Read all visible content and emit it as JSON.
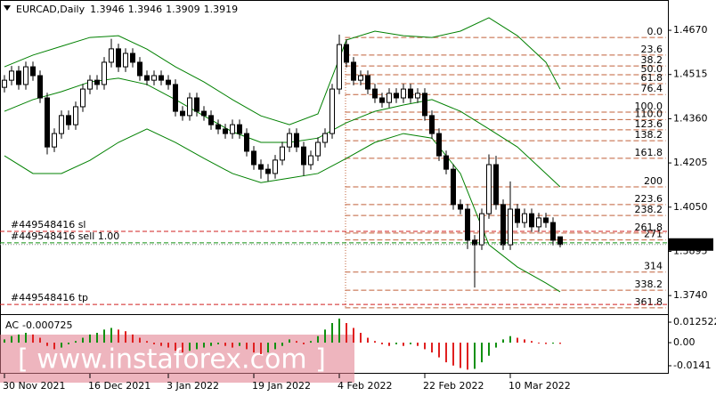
{
  "chart_data": {
    "type": "candlestick",
    "title": "EURCAD,Daily",
    "ylim": [
      1.3678,
      1.477
    ],
    "yticks": [
      {
        "value": 1.467,
        "label": "1.4670"
      },
      1.4515,
      {
        "value": 1.436,
        "label": "1.4360"
      },
      1.4205,
      {
        "value": 1.405,
        "label": "1.4050"
      },
      1.3895,
      {
        "value": 1.374,
        "label": "1.3740"
      }
    ],
    "xticks": [
      {
        "value": 0,
        "label": "30 Nov 2021"
      },
      {
        "value": 12,
        "label": "16 Dec 2021"
      },
      {
        "value": 23,
        "label": "3 Jan 2022"
      },
      {
        "value": 35,
        "label": "19 Jan 2022"
      },
      {
        "value": 47,
        "label": "4 Feb 2022"
      },
      {
        "value": 59,
        "label": "22 Feb 2022"
      },
      {
        "value": 71,
        "label": "10 Mar 2022"
      }
    ],
    "up_color": "#ffffff",
    "down_color": "#000000",
    "open": [
      1.447,
      1.4495,
      1.4527,
      1.448,
      1.4542,
      1.4511,
      1.4433,
      1.4261,
      1.4308,
      1.4371,
      1.4339,
      1.4402,
      1.4464,
      1.4495,
      1.448,
      1.4558,
      1.4605,
      1.4542,
      1.4589,
      1.4558,
      1.4511,
      1.4495,
      1.4511,
      1.4495,
      1.448,
      1.4386,
      1.4371,
      1.4433,
      1.4386,
      1.4371,
      1.4339,
      1.4324,
      1.4308,
      1.4339,
      1.4308,
      1.4246,
      1.4199,
      1.4183,
      1.4168,
      1.4215,
      1.4261,
      1.4308,
      1.4261,
      1.4199,
      1.423,
      1.4277,
      1.4308,
      1.4464,
      1.462,
      1.4558,
      1.4495,
      1.4511,
      1.4464,
      1.4433,
      1.4417,
      1.4449,
      1.4433,
      1.4464,
      1.4433,
      1.4449,
      1.4371,
      1.4308,
      1.423,
      1.4183,
      1.4059,
      1.4043,
      1.3934,
      1.3918,
      1.4027,
      1.4199,
      1.4059,
      1.3918,
      1.4043,
      1.3996,
      1.4027,
      1.3981,
      1.4012,
      1.3996,
      1.3946
    ],
    "high": [
      1.4513,
      1.4545,
      1.4545,
      1.456,
      1.456,
      1.4529,
      1.4451,
      1.4326,
      1.4389,
      1.4389,
      1.442,
      1.4482,
      1.4513,
      1.4513,
      1.4576,
      1.464,
      1.4623,
      1.4607,
      1.4607,
      1.4576,
      1.4529,
      1.4529,
      1.4529,
      1.4513,
      1.4498,
      1.4404,
      1.4451,
      1.4451,
      1.4404,
      1.4389,
      1.4357,
      1.4342,
      1.4357,
      1.4357,
      1.4326,
      1.4264,
      1.4217,
      1.4201,
      1.4233,
      1.4279,
      1.4326,
      1.4326,
      1.4279,
      1.4248,
      1.4295,
      1.4326,
      1.4482,
      1.4655,
      1.4638,
      1.4576,
      1.4529,
      1.4529,
      1.4482,
      1.4451,
      1.4467,
      1.4467,
      1.4482,
      1.4482,
      1.4467,
      1.4467,
      1.4389,
      1.4326,
      1.4248,
      1.4201,
      1.4077,
      1.4061,
      1.3952,
      1.4045,
      1.4235,
      1.423,
      1.4077,
      1.414,
      1.4061,
      1.4045,
      1.4045,
      1.403,
      1.403,
      1.4014,
      1.3946
    ],
    "low": [
      1.4452,
      1.4477,
      1.4462,
      1.4462,
      1.4493,
      1.4415,
      1.4235,
      1.4243,
      1.429,
      1.4321,
      1.4321,
      1.4384,
      1.4446,
      1.4462,
      1.4462,
      1.454,
      1.4524,
      1.4524,
      1.454,
      1.4493,
      1.4477,
      1.4477,
      1.4477,
      1.4462,
      1.4368,
      1.4353,
      1.4353,
      1.4368,
      1.4353,
      1.4321,
      1.4306,
      1.429,
      1.429,
      1.429,
      1.4228,
      1.4181,
      1.415,
      1.414,
      1.415,
      1.4197,
      1.4243,
      1.4243,
      1.416,
      1.4181,
      1.4212,
      1.4259,
      1.429,
      1.4446,
      1.454,
      1.4477,
      1.4477,
      1.4446,
      1.4415,
      1.4399,
      1.4399,
      1.4415,
      1.4415,
      1.4415,
      1.4415,
      1.4353,
      1.429,
      1.4212,
      1.4165,
      1.4041,
      1.4025,
      1.3903,
      1.3768,
      1.39,
      1.4009,
      1.4041,
      1.39,
      1.39,
      1.3978,
      1.3978,
      1.3963,
      1.3963,
      1.3978,
      1.3916,
      1.3909
    ],
    "close": [
      1.4495,
      1.4527,
      1.448,
      1.4542,
      1.4511,
      1.4433,
      1.4261,
      1.4308,
      1.4371,
      1.4339,
      1.4402,
      1.4464,
      1.4495,
      1.448,
      1.4558,
      1.4605,
      1.4542,
      1.4589,
      1.4558,
      1.4511,
      1.4495,
      1.4511,
      1.4495,
      1.448,
      1.4386,
      1.4371,
      1.4433,
      1.4386,
      1.4371,
      1.4339,
      1.4324,
      1.4308,
      1.4339,
      1.4308,
      1.4246,
      1.4199,
      1.4183,
      1.4168,
      1.4215,
      1.4261,
      1.4308,
      1.4261,
      1.4199,
      1.423,
      1.4277,
      1.4308,
      1.4464,
      1.462,
      1.4558,
      1.4495,
      1.4511,
      1.4464,
      1.4433,
      1.4417,
      1.4449,
      1.4433,
      1.4464,
      1.4433,
      1.4449,
      1.4371,
      1.4308,
      1.423,
      1.4183,
      1.4059,
      1.4043,
      1.3934,
      1.3918,
      1.4027,
      1.4199,
      1.4059,
      1.3918,
      1.4043,
      1.3996,
      1.4027,
      1.3981,
      1.4012,
      1.3996,
      1.3934,
      1.3919
    ],
    "bands": [
      {
        "color": "#008000",
        "x": [
          0,
          4,
          8,
          12,
          16,
          20,
          24,
          28,
          32,
          36,
          40,
          44,
          48,
          52,
          56,
          60,
          64,
          68,
          72,
          76,
          78
        ],
        "values": [
          1.4542,
          1.4583,
          1.4614,
          1.4645,
          1.4651,
          1.4604,
          1.4542,
          1.4489,
          1.4427,
          1.437,
          1.4339,
          1.4377,
          1.4636,
          1.4667,
          1.4651,
          1.4645,
          1.4667,
          1.4714,
          1.4651,
          1.4558,
          1.4464
        ]
      },
      {
        "color": "#008000",
        "x": [
          0,
          4,
          8,
          12,
          16,
          20,
          24,
          28,
          32,
          36,
          40,
          44,
          48,
          52,
          56,
          60,
          64,
          68,
          72,
          76,
          78
        ],
        "values": [
          1.4386,
          1.4427,
          1.4455,
          1.4489,
          1.4502,
          1.448,
          1.4427,
          1.437,
          1.4314,
          1.4277,
          1.4277,
          1.4292,
          1.4346,
          1.4386,
          1.4408,
          1.4427,
          1.4386,
          1.4324,
          1.4261,
          1.4168,
          1.4121
        ]
      },
      {
        "color": "#008000",
        "x": [
          0,
          4,
          8,
          12,
          16,
          20,
          24,
          28,
          32,
          36,
          40,
          44,
          48,
          52,
          56,
          60,
          64,
          68,
          72,
          76,
          78
        ],
        "values": [
          1.423,
          1.4168,
          1.4168,
          1.4214,
          1.4277,
          1.4324,
          1.4277,
          1.4221,
          1.4168,
          1.4136,
          1.4152,
          1.4168,
          1.4221,
          1.4277,
          1.4308,
          1.4292,
          1.4168,
          1.3918,
          1.384,
          1.3784,
          1.3753
        ]
      }
    ],
    "fib": {
      "color": "#c0603a",
      "start": 47.8,
      "level_0": 1.4645,
      "level_100": 1.4383,
      "levels": [
        {
          "value": 0,
          "label": "0.0"
        },
        23.6,
        38.2,
        {
          "value": 50,
          "label": "50.0"
        },
        61.8,
        76.4,
        {
          "value": 100,
          "label": "100.0"
        },
        {
          "value": 110,
          "label": "110.0"
        },
        123.6,
        138.2,
        161.8,
        200,
        223.6,
        238.2,
        261.8,
        271,
        314,
        338.2,
        361.8
      ]
    },
    "orders": [
      {
        "label": "#449548416 sl",
        "price": 1.3965,
        "color": "#d02020"
      },
      {
        "label": "#449548416 sell 1.00",
        "price": 1.3925,
        "color": "#109010"
      },
      {
        "label": "#449548416 tp",
        "price": 1.3709,
        "color": "#d02020"
      }
    ],
    "indicator": {
      "name": "AC",
      "up_color": "#109010",
      "down_color": "#e02020",
      "ylim": [
        -0.019,
        0.0158
      ],
      "yticks": [
        0.012522,
        {
          "value": 0,
          "label": "0.00"
        },
        -0.0141
      ],
      "values": [
        0.002,
        0.004,
        0.005,
        0.006,
        0.005,
        0.003,
        -0.002,
        -0.004,
        -0.003,
        -0.001,
        0.001,
        0.003,
        0.005,
        0.006,
        0.008,
        0.009,
        0.008,
        0.007,
        0.005,
        0.003,
        0.001,
        -0.001,
        -0.002,
        -0.003,
        -0.005,
        -0.006,
        -0.005,
        -0.004,
        -0.003,
        -0.002,
        -0.001,
        -0.002,
        -0.003,
        -0.002,
        -0.004,
        -0.006,
        -0.007,
        -0.006,
        -0.004,
        -0.002,
        0.002,
        0.001,
        -0.001,
        0.001,
        0.004,
        0.008,
        0.012,
        0.0147,
        0.012,
        0.009,
        0.006,
        0.003,
        0.001,
        -0.001,
        -0.002,
        -0.001,
        -0.002,
        -0.001,
        -0.002,
        -0.004,
        -0.006,
        -0.009,
        -0.012,
        -0.014,
        -0.0155,
        -0.0165,
        -0.016,
        -0.012,
        -0.008,
        -0.003,
        0.002,
        0.004,
        0.003,
        0.002,
        0.001,
        -0.0005,
        -0.0008,
        -0.0006,
        -0.000725
      ]
    },
    "watermark": "[ www.instaforex.com ]"
  }
}
